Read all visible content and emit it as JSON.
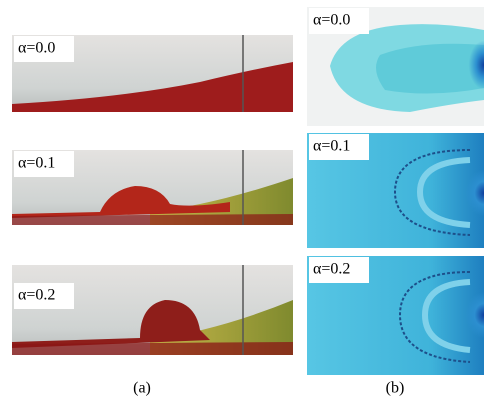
{
  "panel_a": {
    "labels": [
      "α=0.0",
      "α=0.1",
      "α=0.2"
    ],
    "caption": "(a)"
  },
  "panel_b": {
    "labels": [
      "α=0.0",
      "α=0.1",
      "α=0.2"
    ],
    "caption": "(b)"
  }
}
